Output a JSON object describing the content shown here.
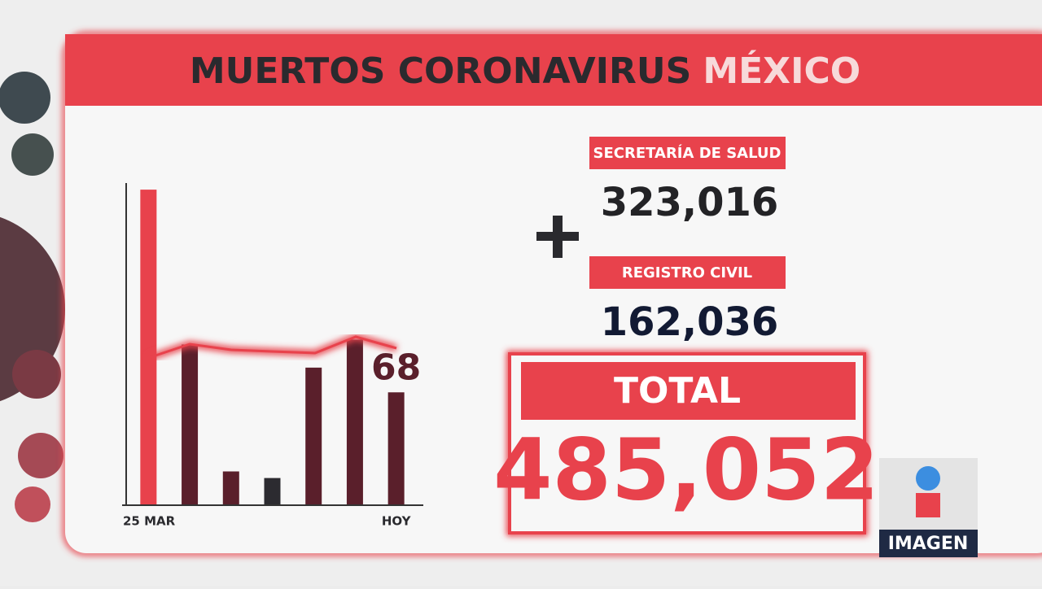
{
  "header": {
    "title": "MUERTOS CORONAVIRUS",
    "title_highlight": "MÉXICO"
  },
  "chart_data": {
    "type": "bar",
    "categories": [
      "25 MAR",
      null,
      null,
      null,
      null,
      null,
      "HOY"
    ],
    "values": [
      191,
      97,
      20,
      16,
      83,
      100,
      68
    ],
    "colors": [
      "#e8424c",
      "#5a1f2b",
      "#5a1f2b",
      "#2c2b30",
      "#5a1f2b",
      "#5a1f2b",
      "#5a1f2b"
    ],
    "ylim": [
      0,
      195
    ],
    "labeled_point": 6
  },
  "panel": {
    "source1_label": "SECRETARÍA DE SALUD",
    "source1_value": "323,016",
    "source2_label": "REGISTRO CIVIL",
    "source2_value": "162,036",
    "total_label": "TOTAL",
    "total_value": "485,052"
  },
  "logo": {
    "text": "IMAGEN"
  }
}
